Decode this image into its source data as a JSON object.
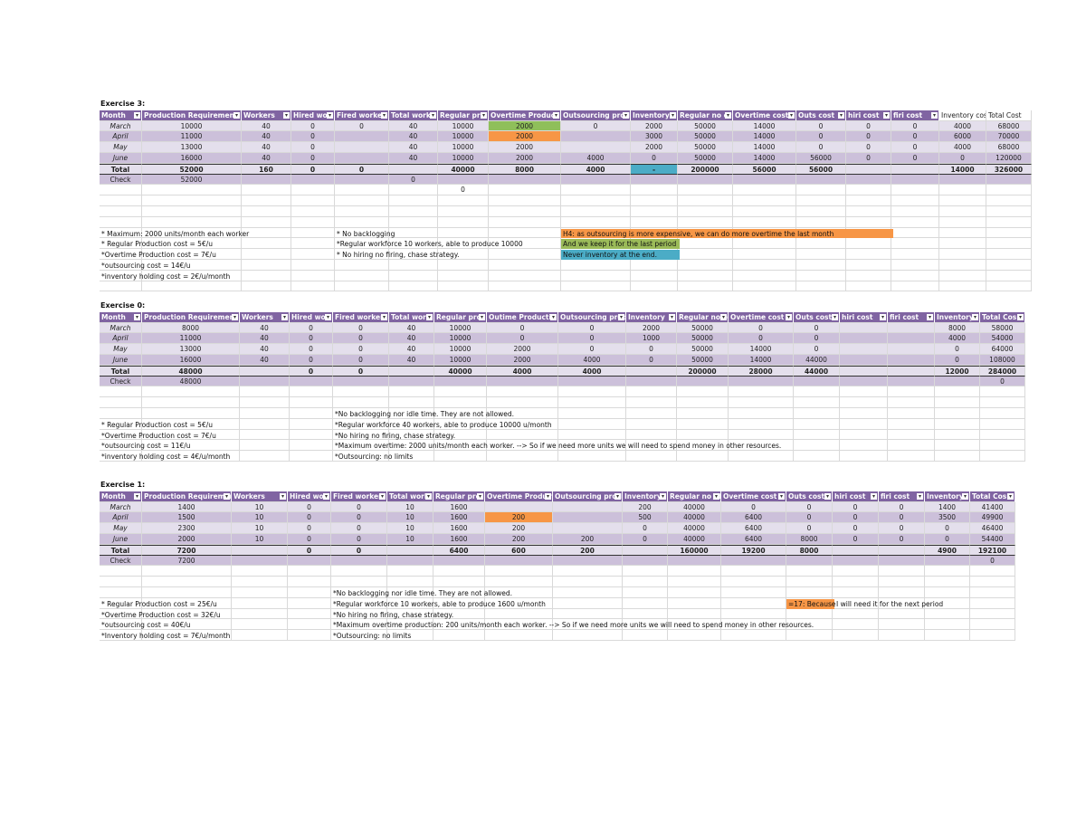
{
  "exercises": [
    {
      "title": "Exercise 3:",
      "headers": [
        "Month",
        "Production Requirement",
        "Workers",
        "Hired wo",
        "Fired worker",
        "Total work",
        "Regular pro",
        "Overtime Produc",
        "Outsourcing prod",
        "Inventory",
        "Regular no ot",
        "Overtime cost",
        "Outs cost",
        "hiri cost",
        "firi cost",
        "Inventory cost",
        "Total Cost"
      ],
      "rows": [
        [
          "March",
          10000,
          40,
          0,
          0,
          40,
          10000,
          2000,
          0,
          2000,
          50000,
          14000,
          0,
          0,
          0,
          4000,
          68000
        ],
        [
          "April",
          11000,
          40,
          0,
          null,
          40,
          10000,
          2000,
          null,
          3000,
          50000,
          14000,
          0,
          0,
          0,
          6000,
          70000
        ],
        [
          "May",
          13000,
          40,
          0,
          null,
          40,
          10000,
          2000,
          null,
          2000,
          50000,
          14000,
          0,
          0,
          0,
          4000,
          68000
        ],
        [
          "June",
          16000,
          40,
          0,
          null,
          40,
          10000,
          2000,
          4000,
          0,
          50000,
          14000,
          56000,
          0,
          0,
          0,
          120000
        ],
        [
          "Total",
          52000,
          160,
          0,
          0,
          null,
          40000,
          8000,
          4000,
          "-",
          200000,
          56000,
          56000,
          null,
          null,
          14000,
          326000
        ],
        [
          "Check",
          52000,
          null,
          null,
          null,
          0,
          null,
          null,
          null,
          null,
          null,
          null,
          null,
          null,
          null,
          null,
          null
        ],
        [
          null,
          null,
          null,
          null,
          null,
          null,
          0,
          null,
          null,
          null,
          null,
          null,
          null,
          null,
          null,
          null,
          null
        ]
      ],
      "left_notes": [
        "* Maximum: 2000 units/month each worker",
        "* Regular Production cost = 5€/u",
        "*Overtime Production cost = 7€/u",
        "*outsourcing cost = 14€/u",
        "*inventory holding cost = 2€/u/month"
      ],
      "middle_notes": [
        "* No backlogging",
        "*Regular workforce 10 workers, able to produce 10000",
        "* No hiring no firing, chase strategy."
      ],
      "right_notes": [
        "H4: as outsourcing is more expensive, we can do more overtime the last month",
        "And we keep it for the last period",
        "Never inventory at the end."
      ]
    },
    {
      "title": "Exercise 0:",
      "headers": [
        "Month",
        "Production Requirement",
        "Workers",
        "Hired wo",
        "Fired worker",
        "Total work",
        "Regular pro",
        "Outime Productio",
        "Outsourcing prod",
        "Inventory",
        "Regular no ot",
        "Overtime cost",
        "Outs cost",
        "hiri cost",
        "firi cost",
        "Inventory",
        "Total Cos"
      ],
      "rows": [
        [
          "March",
          8000,
          40,
          0,
          0,
          40,
          10000,
          0,
          0,
          2000,
          50000,
          0,
          0,
          null,
          null,
          8000,
          58000
        ],
        [
          "April",
          11000,
          40,
          0,
          0,
          40,
          10000,
          0,
          0,
          1000,
          50000,
          0,
          0,
          null,
          null,
          4000,
          54000
        ],
        [
          "May",
          13000,
          40,
          0,
          0,
          40,
          10000,
          2000,
          0,
          0,
          50000,
          14000,
          0,
          null,
          null,
          0,
          64000
        ],
        [
          "June",
          16000,
          40,
          0,
          0,
          40,
          10000,
          2000,
          4000,
          0,
          50000,
          14000,
          44000,
          null,
          null,
          0,
          108000
        ],
        [
          "Total",
          48000,
          null,
          0,
          0,
          null,
          40000,
          4000,
          4000,
          null,
          200000,
          28000,
          44000,
          null,
          null,
          12000,
          284000
        ],
        [
          "Check",
          48000,
          null,
          null,
          null,
          null,
          null,
          null,
          null,
          null,
          null,
          null,
          null,
          null,
          null,
          null,
          0
        ]
      ],
      "left_notes": [
        "* Regular Production cost = 5€/u",
        "*Overtime Production cost = 7€/u",
        "*outsourcing cost = 11€/u",
        "*inventory holding cost = 4€/u/month"
      ],
      "middle_notes": [
        "*No backlogging nor idle time. They are not allowed.",
        "*Regular workforce 40 workers, able to produce 10000 u/month",
        "*No hiring no firing, chase strategy.",
        "*Maximum overtime: 2000 units/month each worker. --> So if we need more units we will need to spend money in other resources.",
        "*Outsourcing: no limits"
      ]
    },
    {
      "title": "Exercise 1:",
      "headers": [
        "Month",
        "Production Requirement",
        "Workers",
        "Hired wo",
        "Fired worker",
        "Total work",
        "Regular pro",
        "Overtime Product",
        "Outsourcing prod",
        "Inventory",
        "Regular no ot",
        "Overtime cost",
        "Outs cost",
        "hiri cost",
        "firi cost",
        "Inventory",
        "Total Cos"
      ],
      "rows": [
        [
          "March",
          1400,
          10,
          0,
          0,
          10,
          1600,
          null,
          null,
          200,
          40000,
          0,
          0,
          0,
          0,
          1400,
          41400
        ],
        [
          "April",
          1500,
          10,
          0,
          0,
          10,
          1600,
          200,
          null,
          500,
          40000,
          6400,
          0,
          0,
          0,
          3500,
          49900
        ],
        [
          "May",
          2300,
          10,
          0,
          0,
          10,
          1600,
          200,
          null,
          0,
          40000,
          6400,
          0,
          0,
          0,
          0,
          46400
        ],
        [
          "June",
          2000,
          10,
          0,
          0,
          10,
          1600,
          200,
          200,
          0,
          40000,
          6400,
          8000,
          0,
          0,
          0,
          54400
        ],
        [
          "Total",
          7200,
          null,
          0,
          0,
          null,
          6400,
          600,
          200,
          null,
          160000,
          19200,
          8000,
          null,
          null,
          4900,
          192100
        ],
        [
          "Check",
          7200,
          null,
          null,
          null,
          null,
          null,
          null,
          null,
          null,
          null,
          null,
          null,
          null,
          null,
          null,
          0
        ]
      ],
      "left_notes": [
        "* Regular Production cost = 25€/u",
        "*Overtime Production cost = 32€/u",
        "*outsourcing cost = 40€/u",
        "*Inventory holding cost = 7€/u/month"
      ],
      "middle_notes": [
        "*No backlogging nor idle time. They are not allowed.",
        "*Regular workforce 10 workers, able to produce 1600 u/month",
        "*No hiring no firing, chase strategy.",
        "*Maximum overtime production: 200 units/month each worker. --> So if we need more units we will need to spend money in other resources.",
        "*Outsourcing: no limits"
      ],
      "flag_note": {
        "label": "=17: Because",
        "text": "I will need it for the next period"
      }
    }
  ]
}
